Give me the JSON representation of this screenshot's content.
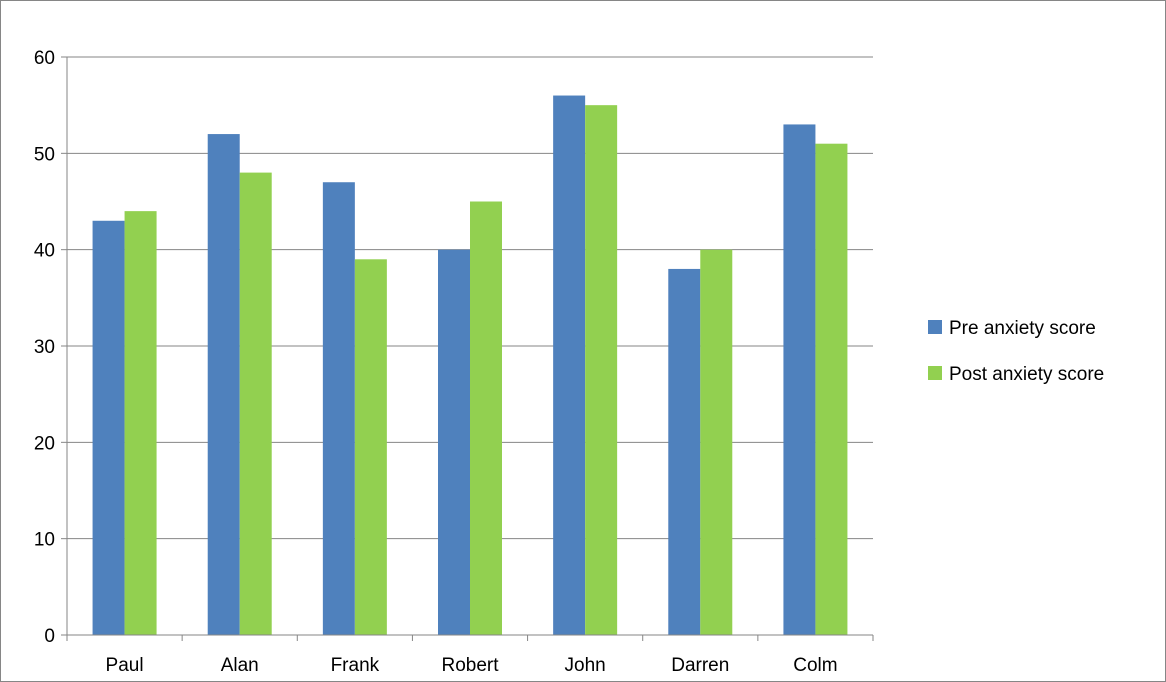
{
  "chart_data": {
    "type": "bar",
    "title": "",
    "xlabel": "",
    "ylabel": "",
    "categories": [
      "Paul",
      "Alan",
      "Frank",
      "Robert",
      "John",
      "Darren",
      "Colm"
    ],
    "series": [
      {
        "name": "Pre anxiety score",
        "color": "#4f81bd",
        "values": [
          43,
          52,
          47,
          40,
          56,
          38,
          53
        ]
      },
      {
        "name": "Post anxiety score",
        "color": "#92d050",
        "values": [
          44,
          48,
          39,
          45,
          55,
          40,
          51
        ]
      }
    ],
    "ylim": [
      0,
      60
    ],
    "yticks": [
      "0",
      "10",
      "20",
      "30",
      "40",
      "50",
      "60"
    ],
    "grid": true,
    "legend_position": "right"
  }
}
